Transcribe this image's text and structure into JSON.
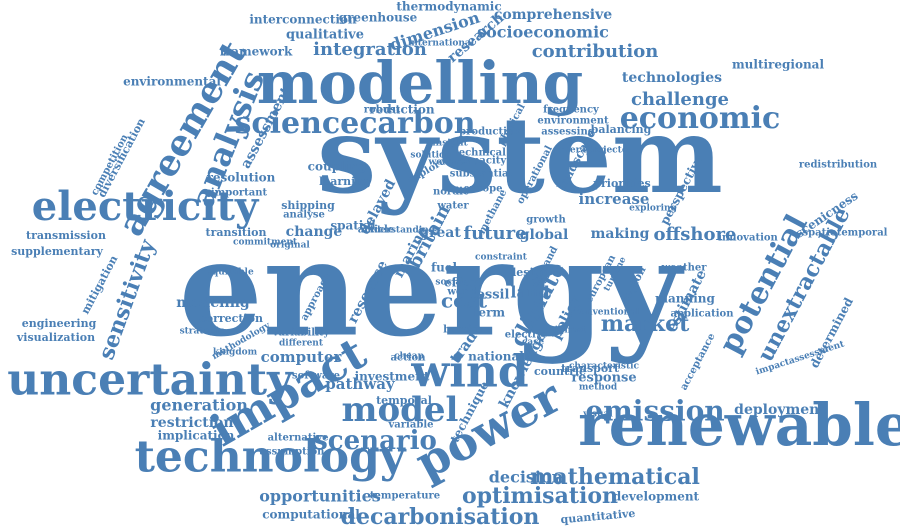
{
  "color": "#4a7fb5",
  "words": [
    {
      "text": "energy"
    },
    {
      "text": "system"
    },
    {
      "text": "modelling"
    },
    {
      "text": "renewable"
    },
    {
      "text": "technology"
    },
    {
      "text": "uncertainty"
    },
    {
      "text": "electricity"
    },
    {
      "text": "power"
    },
    {
      "text": "impact"
    },
    {
      "text": "wind"
    },
    {
      "text": "model"
    },
    {
      "text": "sciencecarbon"
    },
    {
      "text": "economic"
    },
    {
      "text": "emission"
    },
    {
      "text": "analysis"
    },
    {
      "text": "agreement"
    },
    {
      "text": "potential"
    },
    {
      "text": "unextractable"
    },
    {
      "text": "scenario"
    },
    {
      "text": "decarbonisation"
    },
    {
      "text": "optimisation"
    },
    {
      "text": "mathematical"
    },
    {
      "text": "market"
    },
    {
      "text": "sensitivity"
    },
    {
      "text": "integration"
    },
    {
      "text": "contribution"
    },
    {
      "text": "challenge"
    },
    {
      "text": "technologies"
    },
    {
      "text": "socioeconomic"
    },
    {
      "text": "comprehensive"
    },
    {
      "text": "dimension"
    },
    {
      "text": "research"
    },
    {
      "text": "greenhouse"
    },
    {
      "text": "thermodynamic"
    },
    {
      "text": "interconnection"
    },
    {
      "text": "qualitative"
    },
    {
      "text": "framework"
    },
    {
      "text": "environmental"
    },
    {
      "text": "diversification"
    },
    {
      "text": "competition"
    },
    {
      "text": "assessment"
    },
    {
      "text": "resolution"
    },
    {
      "text": "transmission"
    },
    {
      "text": "supplementary"
    },
    {
      "text": "mitigation"
    },
    {
      "text": "engineering"
    },
    {
      "text": "visualization"
    },
    {
      "text": "modeling"
    },
    {
      "text": "correction"
    },
    {
      "text": "computer"
    },
    {
      "text": "generation"
    },
    {
      "text": "restriction"
    },
    {
      "text": "implication"
    },
    {
      "text": "opportunities"
    },
    {
      "text": "computational"
    },
    {
      "text": "deployment"
    },
    {
      "text": "decision"
    },
    {
      "text": "development"
    },
    {
      "text": "quantitative"
    },
    {
      "text": "temperature"
    },
    {
      "text": "assumption"
    },
    {
      "text": "alternative"
    },
    {
      "text": "pathway"
    },
    {
      "text": "national"
    },
    {
      "text": "cost"
    },
    {
      "text": "resource"
    },
    {
      "text": "trade"
    },
    {
      "text": "climate"
    },
    {
      "text": "policy"
    },
    {
      "text": "land"
    },
    {
      "text": "great"
    },
    {
      "text": "future"
    },
    {
      "text": "global"
    },
    {
      "text": "making"
    },
    {
      "text": "offshore"
    },
    {
      "text": "innovation"
    },
    {
      "text": "increase"
    },
    {
      "text": "priorities"
    },
    {
      "text": "perspective"
    },
    {
      "text": "landscape"
    },
    {
      "text": "scenicness"
    },
    {
      "text": "spatiotemporal"
    },
    {
      "text": "redistribution"
    },
    {
      "text": "multiregional"
    },
    {
      "text": "determined"
    },
    {
      "text": "acceptance"
    },
    {
      "text": "response"
    },
    {
      "text": "characteristic"
    },
    {
      "text": "impactassessment"
    },
    {
      "text": "estimate"
    },
    {
      "text": "planning"
    },
    {
      "text": "application"
    },
    {
      "text": "change"
    },
    {
      "text": "spatial"
    },
    {
      "text": "delayed"
    },
    {
      "text": "marine"
    },
    {
      "text": "britain"
    },
    {
      "text": "water"
    },
    {
      "text": "nordic"
    },
    {
      "text": "europe"
    },
    {
      "text": "methane"
    },
    {
      "text": "coupling"
    },
    {
      "text": "learning"
    },
    {
      "text": "important"
    },
    {
      "text": "shipping"
    },
    {
      "text": "analyse"
    },
    {
      "text": "transition"
    },
    {
      "text": "fuel"
    },
    {
      "text": "fossil"
    },
    {
      "text": "term"
    },
    {
      "text": "barrier"
    },
    {
      "text": "social"
    },
    {
      "text": "countrie"
    },
    {
      "text": "action"
    },
    {
      "text": "software"
    },
    {
      "text": "investment"
    },
    {
      "text": "temporal"
    },
    {
      "text": "approach"
    },
    {
      "text": "variability"
    },
    {
      "text": "different"
    },
    {
      "text": "kingdom"
    },
    {
      "text": "methodology"
    },
    {
      "text": "knowledge"
    },
    {
      "text": "robust"
    },
    {
      "text": "reduction"
    },
    {
      "text": "frequency"
    },
    {
      "text": "environment"
    },
    {
      "text": "assessing"
    },
    {
      "text": "balancing"
    },
    {
      "text": "production"
    },
    {
      "text": "physical"
    },
    {
      "text": "technical"
    },
    {
      "text": "capacity"
    },
    {
      "text": "solution"
    },
    {
      "text": "explore"
    },
    {
      "text": "welfare"
    },
    {
      "text": "article"
    },
    {
      "text": "region"
    },
    {
      "text": "european"
    },
    {
      "text": "turbine"
    },
    {
      "text": "weather"
    },
    {
      "text": "technique"
    },
    {
      "text": "variable"
    },
    {
      "text": "transport"
    },
    {
      "text": "method"
    },
    {
      "text": "international"
    },
    {
      "text": "operational"
    },
    {
      "text": "demand"
    },
    {
      "text": "growth"
    },
    {
      "text": "electric"
    },
    {
      "text": "design"
    },
    {
      "text": "effect"
    },
    {
      "text": "world"
    },
    {
      "text": "case"
    },
    {
      "text": "highest"
    },
    {
      "text": "visual"
    },
    {
      "text": "commitment"
    },
    {
      "text": "equitable"
    },
    {
      "text": "conventional"
    },
    {
      "text": "substantial"
    },
    {
      "text": "insight"
    },
    {
      "text": "exploring"
    },
    {
      "text": "operation"
    },
    {
      "text": "projected"
    },
    {
      "text": "strategic"
    },
    {
      "text": "understanding"
    },
    {
      "text": "constraint"
    },
    {
      "text": "cheap"
    },
    {
      "text": "original"
    },
    {
      "text": "significant"
    }
  ]
}
